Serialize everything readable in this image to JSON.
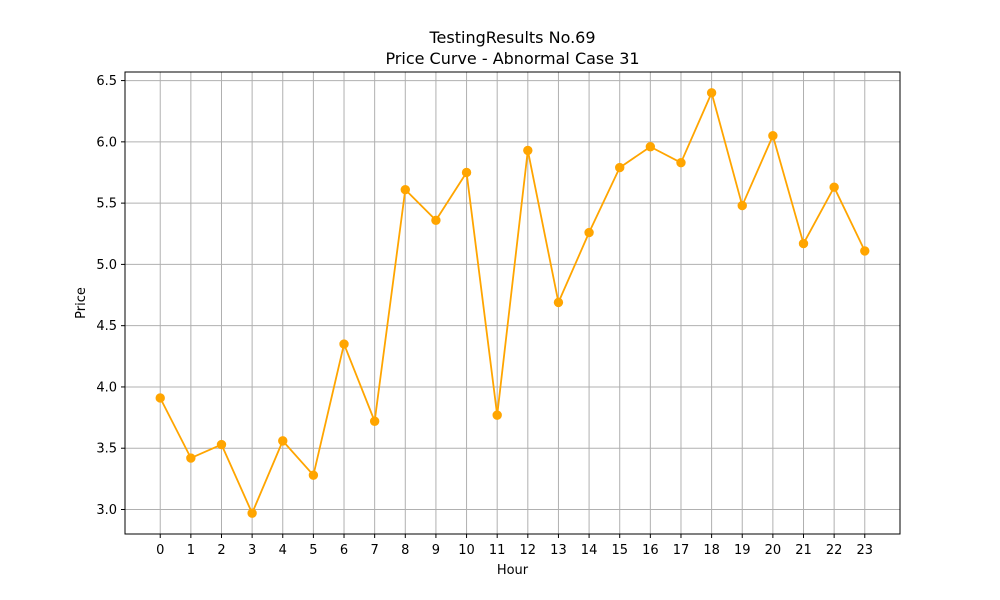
{
  "chart_data": {
    "type": "line",
    "title": "TestingResults No.69",
    "subtitle": "Price Curve - Abnormal Case 31",
    "xlabel": "Hour",
    "ylabel": "Price",
    "x": [
      0,
      1,
      2,
      3,
      4,
      5,
      6,
      7,
      8,
      9,
      10,
      11,
      12,
      13,
      14,
      15,
      16,
      17,
      18,
      19,
      20,
      21,
      22,
      23
    ],
    "series": [
      {
        "values": [
          3.91,
          3.42,
          3.53,
          2.97,
          3.56,
          3.28,
          4.35,
          3.72,
          5.61,
          5.36,
          5.75,
          3.77,
          5.93,
          4.69,
          5.26,
          5.79,
          5.96,
          5.83,
          6.4,
          5.48,
          6.05,
          5.17,
          5.63,
          5.11
        ],
        "color": "#ffa500"
      }
    ],
    "xticks": [
      "0",
      "1",
      "2",
      "3",
      "4",
      "5",
      "6",
      "7",
      "8",
      "9",
      "10",
      "11",
      "12",
      "13",
      "14",
      "15",
      "16",
      "17",
      "18",
      "19",
      "20",
      "21",
      "22",
      "23"
    ],
    "yticks": [
      "3.0",
      "3.5",
      "4.0",
      "4.5",
      "5.0",
      "5.5",
      "6.0",
      "6.5"
    ],
    "xlim": [
      -1.15,
      24.15
    ],
    "ylim": [
      2.8,
      6.57
    ],
    "grid": true,
    "grid_color": "#b0b0b0"
  }
}
